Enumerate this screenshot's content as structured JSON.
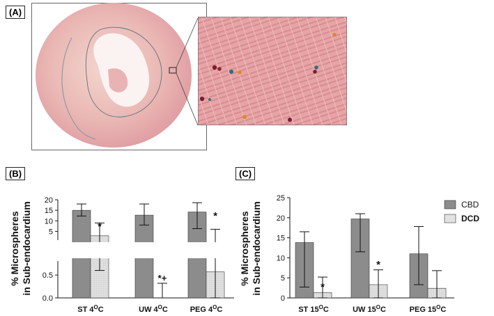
{
  "panels": {
    "a": "(A)",
    "b": "(B)",
    "c": "(C)"
  },
  "colors": {
    "cbd_bar": "#8c8c8c",
    "dcd_bar": "#e2e2e2",
    "tissue_pink": "#e8a7a8",
    "tissue_dark": "#d98c8e",
    "microsphere_colors": [
      "#7a1d33",
      "#2f6f7f",
      "#d98a1e"
    ]
  },
  "legend": {
    "cbd": "CBD",
    "dcd": "DCD"
  },
  "chart_data": [
    {
      "type": "bar",
      "panel": "B",
      "ylabel": "% Microspheres in Sub-endocardium",
      "axis_break": true,
      "ylim_lower": [
        0,
        0.7
      ],
      "ylim_upper": [
        2.5,
        20
      ],
      "yticks_lower": [
        "0.0",
        "0.5"
      ],
      "yticks_upper": [
        "5",
        "10",
        "15",
        "20"
      ],
      "categories": [
        "ST 4°C",
        "UW 4°C",
        "PEG 4°C"
      ],
      "series": [
        {
          "name": "CBD",
          "values": [
            15.0,
            12.7,
            14.2
          ],
          "err_low": [
            12.3,
            8.0,
            6.3
          ],
          "err_high": [
            18.0,
            18.0,
            18.6
          ]
        },
        {
          "name": "DCD",
          "values": [
            2.9,
            0.0,
            0.57
          ],
          "err_low": [
            0.6,
            0.0,
            0.0
          ],
          "err_high": [
            9.0,
            0.32,
            6.0
          ]
        }
      ],
      "annotations": [
        "*",
        "*+",
        "*"
      ]
    },
    {
      "type": "bar",
      "panel": "C",
      "ylabel": "% Microspheres in Sub-endocardium",
      "ylim": [
        0,
        25
      ],
      "yticks": [
        "0",
        "5",
        "10",
        "15",
        "20",
        "25"
      ],
      "categories": [
        "ST 15°C",
        "UW 15°C",
        "PEG 15°C"
      ],
      "series": [
        {
          "name": "CBD",
          "values": [
            13.8,
            19.7,
            11.0
          ],
          "err_low": [
            2.7,
            11.5,
            3.3
          ],
          "err_high": [
            16.5,
            21.0,
            17.8
          ]
        },
        {
          "name": "DCD",
          "values": [
            1.3,
            3.3,
            2.4
          ],
          "err_low": [
            0.0,
            0.0,
            0.0
          ],
          "err_high": [
            5.2,
            7.0,
            6.8
          ]
        }
      ],
      "annotations": [
        "*",
        "*",
        ""
      ]
    }
  ]
}
